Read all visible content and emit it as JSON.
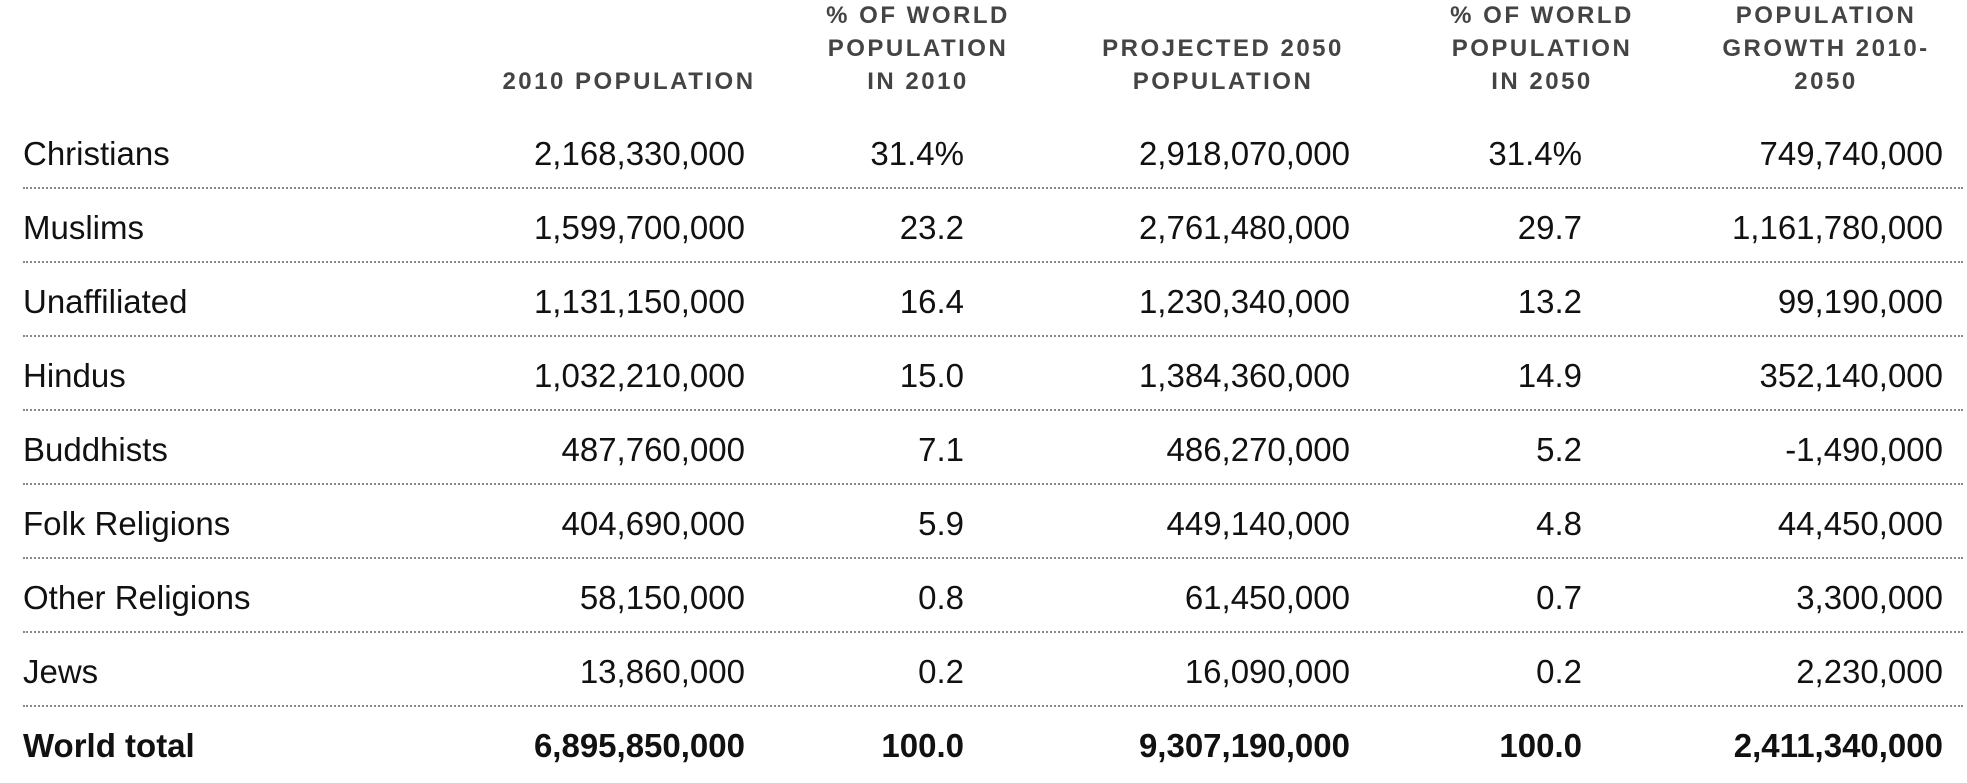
{
  "table": {
    "header": [
      [],
      [
        "2010 POPULATION"
      ],
      [
        "% OF WORLD",
        "POPULATION",
        "IN 2010"
      ],
      [
        "PROJECTED 2050",
        "POPULATION"
      ],
      [
        "% OF WORLD",
        "POPULATION",
        "IN 2050"
      ],
      [
        "POPULATION",
        "GROWTH 2010-",
        "2050"
      ]
    ],
    "rows": [
      [
        "Christians",
        "2,168,330,000",
        "31.4%",
        "2,918,070,000",
        "31.4%",
        "749,740,000"
      ],
      [
        "Muslims",
        "1,599,700,000",
        "23.2",
        "2,761,480,000",
        "29.7",
        "1,161,780,000"
      ],
      [
        "Unaffiliated",
        "1,131,150,000",
        "16.4",
        "1,230,340,000",
        "13.2",
        "99,190,000"
      ],
      [
        "Hindus",
        "1,032,210,000",
        "15.0",
        "1,384,360,000",
        "14.9",
        "352,140,000"
      ],
      [
        "Buddhists",
        "487,760,000",
        "7.1",
        "486,270,000",
        "5.2",
        "-1,490,000"
      ],
      [
        "Folk Religions",
        "404,690,000",
        "5.9",
        "449,140,000",
        "4.8",
        "44,450,000"
      ],
      [
        "Other Religions",
        "58,150,000",
        "0.8",
        "61,450,000",
        "0.7",
        "3,300,000"
      ],
      [
        "Jews",
        "13,860,000",
        "0.2",
        "16,090,000",
        "0.2",
        "2,230,000"
      ]
    ],
    "total": [
      "World total",
      "6,895,850,000",
      "100.0",
      "9,307,190,000",
      "100.0",
      "2,411,340,000"
    ]
  }
}
